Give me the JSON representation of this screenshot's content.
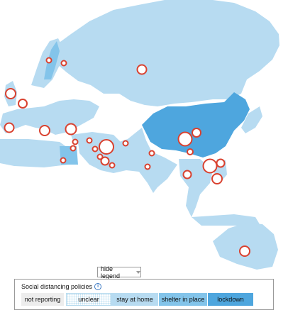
{
  "colors": {
    "stay_at_home": "#b7dbf1",
    "shelter_in_place": "#83c4ea",
    "lockdown": "#4ea6de",
    "not_reporting": "#ededed",
    "bubble_stroke": "#d9412f"
  },
  "legend_toggle": {
    "label": "hide legend"
  },
  "legend": {
    "title": "Social distancing policies",
    "info_icon": "info-icon",
    "items": [
      {
        "label": "not reporting"
      },
      {
        "label": "unclear"
      },
      {
        "label": "stay at home"
      },
      {
        "label": "shelter in place"
      },
      {
        "label": "lockdown"
      }
    ]
  }
}
